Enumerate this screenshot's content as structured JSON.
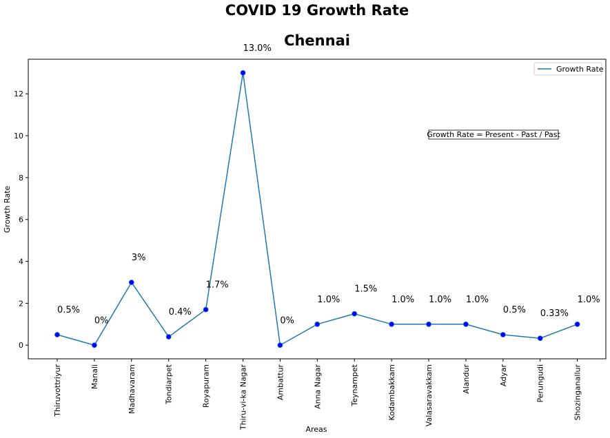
{
  "chart_data": {
    "type": "line",
    "title": "COVID 19 Growth Rate",
    "subtitle": "Chennai",
    "xlabel": "Areas",
    "ylabel": "Growth Rate",
    "categories": [
      "Thiruvottriyur",
      "Manali",
      "Madhavaram",
      "Tondiarpet",
      "Royapuram",
      "Thiru-vi-ka Nagar",
      "Ambattur",
      "Anna Nagar",
      "Teynampet",
      "Kodambakkam",
      "Valasaravakkam",
      "Alandur",
      "Adyar",
      "Perungudi",
      "Shozinganallur"
    ],
    "series": [
      {
        "name": "Growth Rate",
        "values": [
          0.5,
          0,
          3,
          0.4,
          1.7,
          13.0,
          0,
          1.0,
          1.5,
          1.0,
          1.0,
          1.0,
          0.5,
          0.33,
          1.0
        ],
        "color": "#1f77b4",
        "marker_color": "#0000ff"
      }
    ],
    "data_labels": [
      "0.5%",
      "0%",
      "3%",
      "0.4%",
      "1.7%",
      "13.0%",
      "0%",
      "1.0%",
      "1.5%",
      "1.0%",
      "1.0%",
      "1.0%",
      "0.5%",
      "0.33%",
      "1.0%"
    ],
    "yticks": [
      0,
      2,
      4,
      6,
      8,
      10,
      12
    ],
    "ylim": [
      -0.65,
      13.65
    ],
    "annotation": "Growth Rate = Present - Past / Past",
    "legend_position": "top-right",
    "grid": false
  }
}
